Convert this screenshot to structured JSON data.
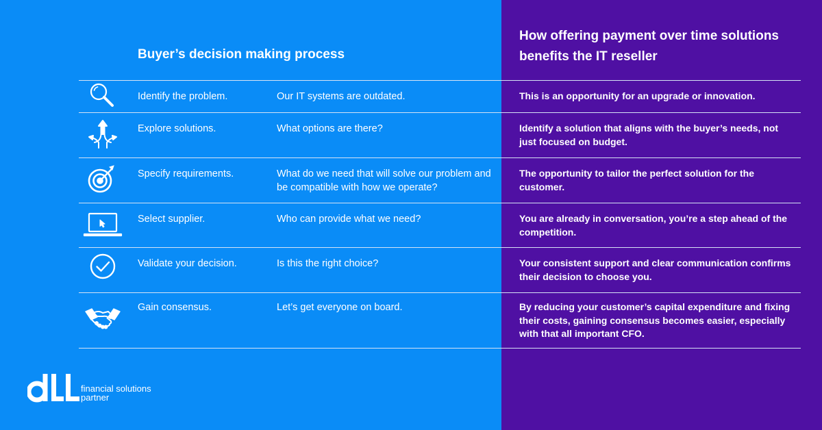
{
  "left_header": "Buyer’s decision making process",
  "right_header": "How offering payment over time solutions benefits the IT reseller",
  "rows": [
    {
      "icon": "magnifier-icon",
      "step": "Identify the problem.",
      "question": "Our IT systems are outdated.",
      "benefit": "This is an opportunity for an upgrade or innovation."
    },
    {
      "icon": "arrows-split-icon",
      "step": "Explore solutions.",
      "question": "What options are there?",
      "benefit": "Identify a solution that aligns with the buyer’s needs, not just focused on budget."
    },
    {
      "icon": "target-icon",
      "step": "Specify requirements.",
      "question": "What do we need that will solve our problem and be compatible with how we operate?",
      "benefit": "The opportunity to tailor the perfect solution for the customer."
    },
    {
      "icon": "laptop-cursor-icon",
      "step": "Select supplier.",
      "question": "Who can provide what we need?",
      "benefit": "You are already in conversation, you’re a step ahead of the competition."
    },
    {
      "icon": "check-circle-icon",
      "step": "Validate your decision.",
      "question": "Is this the right choice?",
      "benefit": "Your consistent support and clear communication confirms their decision to choose you."
    },
    {
      "icon": "handshake-icon",
      "step": "Gain consensus.",
      "question": "Let’s get everyone on board.",
      "benefit": "By reducing your customer’s capital expenditure and fixing their costs, gaining consensus becomes easier, especially with that all important CFO."
    }
  ],
  "logo": {
    "mark": "dLL",
    "line1": "financial solutions",
    "line2": "partner"
  },
  "colors": {
    "left_bg": "#0a8cf7",
    "right_bg": "#4f10a3",
    "text": "#ffffff"
  }
}
